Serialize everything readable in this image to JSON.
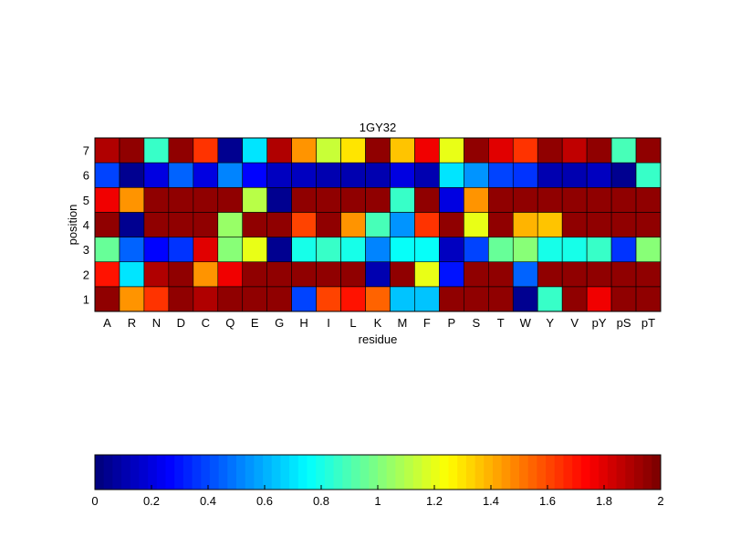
{
  "chart_data": {
    "type": "heatmap",
    "title": "1GY32",
    "xlabel": "residue",
    "ylabel": "position",
    "x_categories": [
      "A",
      "R",
      "N",
      "D",
      "C",
      "Q",
      "E",
      "G",
      "H",
      "I",
      "L",
      "K",
      "M",
      "F",
      "P",
      "S",
      "T",
      "W",
      "Y",
      "V",
      "pY",
      "pS",
      "pT"
    ],
    "y_categories": [
      "1",
      "2",
      "3",
      "4",
      "5",
      "6",
      "7"
    ],
    "values": [
      [
        1.95,
        1.45,
        1.65,
        1.95,
        1.9,
        1.95,
        1.95,
        1.95,
        0.4,
        1.6,
        1.7,
        1.55,
        0.65,
        0.65,
        1.95,
        1.95,
        1.95,
        0.05,
        0.85,
        1.95,
        1.75,
        1.95,
        1.95
      ],
      [
        1.7,
        0.7,
        1.9,
        1.95,
        1.45,
        1.75,
        1.95,
        1.95,
        1.95,
        1.95,
        1.95,
        0.1,
        1.95,
        1.2,
        0.3,
        1.95,
        1.95,
        0.45,
        1.95,
        1.95,
        1.95,
        1.95,
        1.95
      ],
      [
        0.95,
        0.45,
        0.25,
        0.35,
        1.8,
        1.0,
        1.2,
        0.05,
        0.8,
        0.85,
        0.8,
        0.5,
        0.75,
        0.75,
        0.15,
        0.4,
        0.95,
        1.0,
        0.8,
        0.8,
        0.85,
        0.35,
        1.0
      ],
      [
        1.95,
        0.05,
        1.95,
        1.95,
        1.95,
        1.05,
        1.95,
        1.95,
        1.6,
        1.95,
        1.45,
        0.9,
        0.55,
        1.65,
        1.95,
        1.2,
        1.95,
        1.4,
        1.35,
        1.95,
        1.95,
        1.95,
        1.95
      ],
      [
        1.75,
        1.45,
        1.95,
        1.95,
        1.95,
        1.95,
        1.1,
        0.05,
        1.95,
        1.95,
        1.95,
        1.95,
        0.85,
        1.95,
        0.2,
        1.45,
        1.95,
        1.95,
        1.95,
        1.95,
        1.95,
        1.95,
        1.95
      ],
      [
        0.4,
        0.05,
        0.2,
        0.45,
        0.2,
        0.5,
        0.25,
        0.15,
        0.15,
        0.1,
        0.1,
        0.1,
        0.2,
        0.1,
        0.7,
        0.55,
        0.4,
        0.35,
        0.1,
        0.1,
        0.15,
        0.05,
        0.85
      ],
      [
        1.9,
        1.95,
        0.85,
        1.95,
        1.65,
        0.05,
        0.7,
        1.9,
        1.45,
        1.15,
        1.3,
        1.95,
        1.35,
        1.75,
        1.2,
        1.95,
        1.8,
        1.65,
        1.95,
        1.85,
        1.95,
        0.9,
        1.95
      ]
    ],
    "zlim": [
      0,
      2
    ],
    "colormap": "jet",
    "colorbar": {
      "orientation": "horizontal",
      "position": "bottom",
      "ticks": [
        0,
        0.2,
        0.4,
        0.6,
        0.8,
        1,
        1.2,
        1.4,
        1.6,
        1.8,
        2
      ],
      "tick_labels": [
        "0",
        "0.2",
        "0.4",
        "0.6",
        "0.8",
        "1",
        "1.2",
        "1.4",
        "1.6",
        "1.8",
        "2"
      ]
    }
  }
}
